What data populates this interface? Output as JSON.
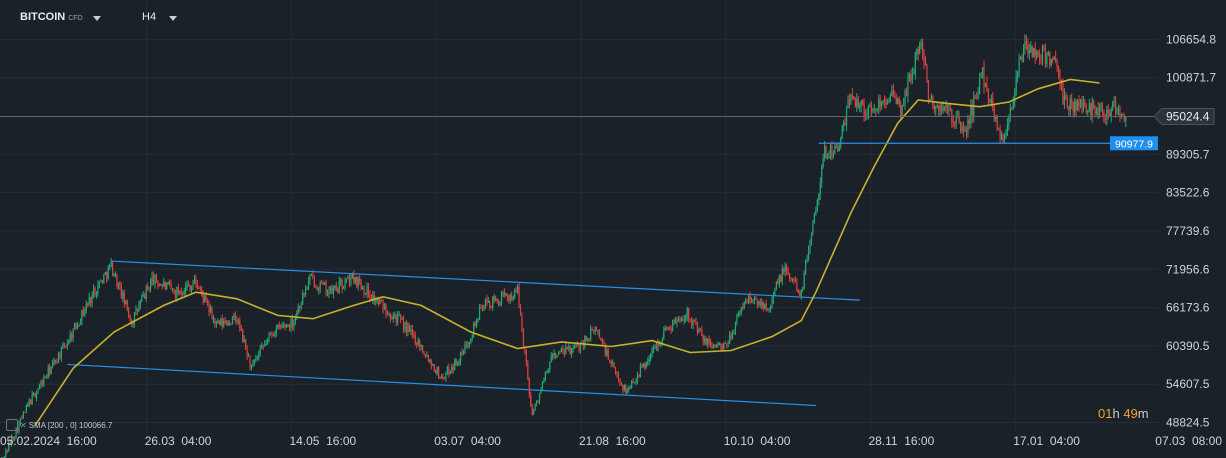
{
  "header": {
    "symbol": "BITCOIN",
    "symbol_tag": "CFD",
    "timeframe": "H4"
  },
  "indicator": {
    "name": "SMA",
    "params": "[200 , 0]",
    "value": "100066.7"
  },
  "countdown": {
    "hours": "01",
    "h": "h",
    "minutes": "49",
    "m": "m"
  },
  "colors": {
    "background": "#1b2129",
    "grid": "#252c35",
    "axis_text": "#d0d5da",
    "bull": "#24a873",
    "bear": "#e0413f",
    "sma": "#c9b22b",
    "trendline": "#2a8ee6",
    "price_line": "#5d6670"
  },
  "chart_data": {
    "type": "candlestick",
    "title": "",
    "xlabel": "",
    "ylabel": "",
    "ylim": [
      47400,
      112600
    ],
    "xlim": [
      "2024-02-05",
      "2025-03-07"
    ],
    "y_ticks": [
      "106654.8",
      "100871.7",
      "95024.4",
      "89305.7",
      "83522.6",
      "77739.6",
      "71956.6",
      "66173.6",
      "60390.5",
      "54607.5",
      "48824.5"
    ],
    "x_ticks": [
      "05.02.2024  16:00",
      "26.03  04:00",
      "14.05  16:00",
      "03.07  04:00",
      "21.08  16:00",
      "10.10  04:00",
      "28.11  16:00",
      "17.01  04:00",
      "07.03  08:00"
    ],
    "current_price": {
      "label": "95024.4",
      "value": 95024.4
    },
    "support_level": {
      "label": "90977.9",
      "value": 90977.9,
      "from": "2024-11-11",
      "to": "2025-03-07"
    },
    "ohlc_path": [
      [
        "2024-02-05",
        42600
      ],
      [
        "2024-02-15",
        51800
      ],
      [
        "2024-02-28",
        61000
      ],
      [
        "2024-03-08",
        68500
      ],
      [
        "2024-03-14",
        72500
      ],
      [
        "2024-03-21",
        64000
      ],
      [
        "2024-03-28",
        70500
      ],
      [
        "2024-04-05",
        68500
      ],
      [
        "2024-04-12",
        70000
      ],
      [
        "2024-04-19",
        63500
      ],
      [
        "2024-04-26",
        64500
      ],
      [
        "2024-05-01",
        57000
      ],
      [
        "2024-05-08",
        62500
      ],
      [
        "2024-05-15",
        64000
      ],
      [
        "2024-05-21",
        70500
      ],
      [
        "2024-05-28",
        68500
      ],
      [
        "2024-06-05",
        70800
      ],
      [
        "2024-06-12",
        67500
      ],
      [
        "2024-06-20",
        64500
      ],
      [
        "2024-06-27",
        61000
      ],
      [
        "2024-07-05",
        55500
      ],
      [
        "2024-07-12",
        59000
      ],
      [
        "2024-07-19",
        66500
      ],
      [
        "2024-07-26",
        67500
      ],
      [
        "2024-07-31",
        68500
      ],
      [
        "2024-08-05",
        50000
      ],
      [
        "2024-08-12",
        59000
      ],
      [
        "2024-08-20",
        60000
      ],
      [
        "2024-08-27",
        63000
      ],
      [
        "2024-09-01",
        57500
      ],
      [
        "2024-09-06",
        53500
      ],
      [
        "2024-09-13",
        58000
      ],
      [
        "2024-09-20",
        63000
      ],
      [
        "2024-09-27",
        65500
      ],
      [
        "2024-10-03",
        61000
      ],
      [
        "2024-10-10",
        60000
      ],
      [
        "2024-10-17",
        67500
      ],
      [
        "2024-10-25",
        66500
      ],
      [
        "2024-10-30",
        72000
      ],
      [
        "2024-11-05",
        68500
      ],
      [
        "2024-11-08",
        76500
      ],
      [
        "2024-11-13",
        89500
      ],
      [
        "2024-11-18",
        90500
      ],
      [
        "2024-11-22",
        98500
      ],
      [
        "2024-11-28",
        95500
      ],
      [
        "2024-12-05",
        98500
      ],
      [
        "2024-12-09",
        96000
      ],
      [
        "2024-12-16",
        106500
      ],
      [
        "2024-12-19",
        97000
      ],
      [
        "2024-12-26",
        95500
      ],
      [
        "2024-12-31",
        92500
      ],
      [
        "2025-01-06",
        101500
      ],
      [
        "2025-01-13",
        91000
      ],
      [
        "2025-01-20",
        105500
      ],
      [
        "2025-01-24",
        104500
      ],
      [
        "2025-01-30",
        104000
      ],
      [
        "2025-02-03",
        97000
      ],
      [
        "2025-02-10",
        96500
      ],
      [
        "2025-02-17",
        95800
      ],
      [
        "2025-02-20",
        96800
      ],
      [
        "2025-02-24",
        95024.4
      ]
    ],
    "sma": {
      "name": "SMA",
      "period": 200,
      "values": [
        [
          "2024-02-17",
          48400
        ],
        [
          "2024-03-01",
          57000
        ],
        [
          "2024-03-15",
          62500
        ],
        [
          "2024-04-01",
          66500
        ],
        [
          "2024-04-12",
          68500
        ],
        [
          "2024-04-26",
          67500
        ],
        [
          "2024-05-10",
          65000
        ],
        [
          "2024-05-22",
          64500
        ],
        [
          "2024-06-05",
          66500
        ],
        [
          "2024-06-15",
          67800
        ],
        [
          "2024-06-28",
          66500
        ],
        [
          "2024-07-15",
          62500
        ],
        [
          "2024-07-31",
          60000
        ],
        [
          "2024-08-15",
          61000
        ],
        [
          "2024-09-01",
          60300
        ],
        [
          "2024-09-15",
          61200
        ],
        [
          "2024-09-28",
          59400
        ],
        [
          "2024-10-12",
          59700
        ],
        [
          "2024-10-26",
          61800
        ],
        [
          "2024-11-05",
          64200
        ],
        [
          "2024-11-10",
          68500
        ],
        [
          "2024-11-15",
          73500
        ],
        [
          "2024-11-22",
          80500
        ],
        [
          "2024-11-30",
          87500
        ],
        [
          "2024-12-08",
          94000
        ],
        [
          "2024-12-15",
          97500
        ],
        [
          "2024-12-25",
          97000
        ],
        [
          "2025-01-05",
          96500
        ],
        [
          "2025-01-15",
          97200
        ],
        [
          "2025-01-25",
          99200
        ],
        [
          "2025-02-05",
          100600
        ],
        [
          "2025-02-15",
          100066.7
        ]
      ]
    },
    "trendlines": [
      {
        "name": "upper",
        "from": [
          "2024-03-14",
          73200
        ],
        "to": [
          "2024-11-25",
          67300
        ]
      },
      {
        "name": "lower",
        "from": [
          "2024-02-28",
          57600
        ],
        "to": [
          "2024-11-10",
          51400
        ]
      }
    ]
  }
}
